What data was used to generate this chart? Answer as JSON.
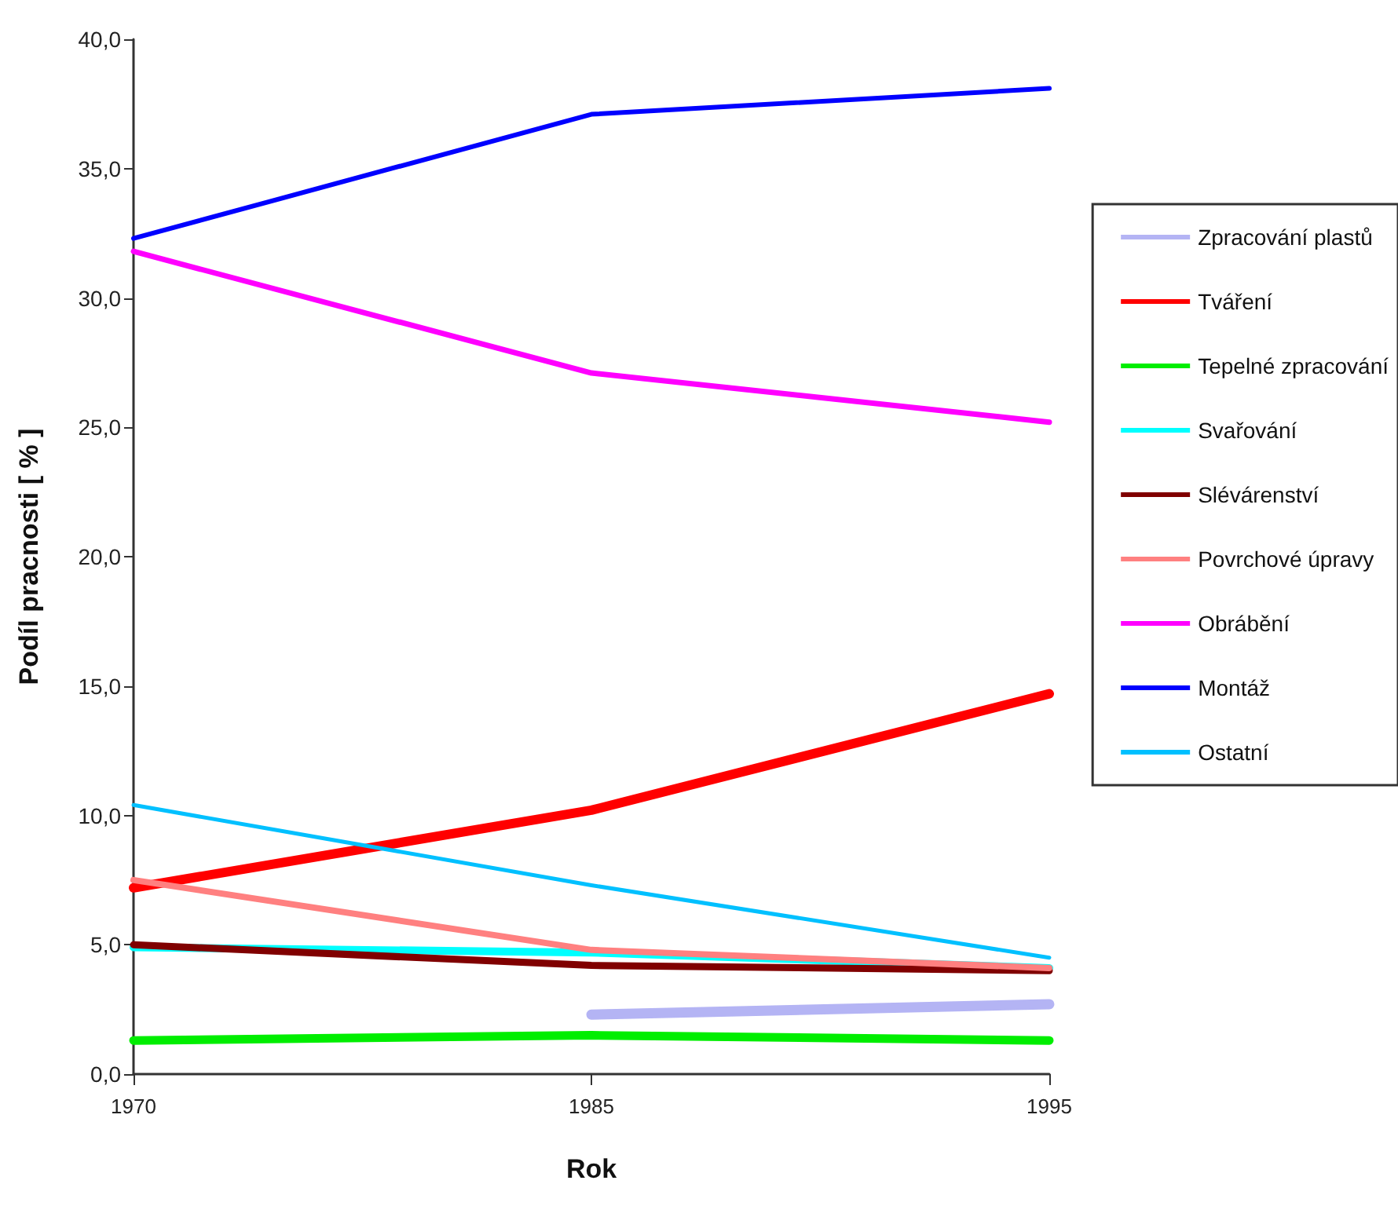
{
  "chart_data": {
    "type": "line",
    "xlabel": "Rok",
    "ylabel": "Podíl pracnosti [ % ]",
    "categories": [
      "1970",
      "1985",
      "1995"
    ],
    "series": [
      {
        "name": "Zpracování plastů",
        "color": "#b4b4f4",
        "values": [
          null,
          2.3,
          2.7
        ]
      },
      {
        "name": "Tváření",
        "color": "#ff0000",
        "values": [
          7.2,
          10.2,
          14.7
        ]
      },
      {
        "name": "Tepelné zpracování",
        "color": "#00ee00",
        "values": [
          1.3,
          1.5,
          1.3
        ]
      },
      {
        "name": "Svařování",
        "color": "#00ffff",
        "values": [
          4.9,
          4.7,
          4.1
        ]
      },
      {
        "name": "Slévárenství",
        "color": "#800000",
        "values": [
          5.0,
          4.2,
          4.0
        ]
      },
      {
        "name": "Povrchové úpravy",
        "color": "#ff8080",
        "values": [
          7.5,
          4.8,
          4.1
        ]
      },
      {
        "name": "Obrábění",
        "color": "#ff00ff",
        "values": [
          31.8,
          27.1,
          25.2
        ]
      },
      {
        "name": "Montáž",
        "color": "#0000ff",
        "values": [
          32.3,
          37.1,
          38.1
        ]
      },
      {
        "name": "Ostatní",
        "color": "#00c0ff",
        "values": [
          10.4,
          7.3,
          4.5
        ]
      }
    ],
    "ylim": [
      0,
      40
    ],
    "yticks": [
      {
        "value": 0,
        "label": "0,0"
      },
      {
        "value": 5,
        "label": "5,0"
      },
      {
        "value": 10,
        "label": "10,0"
      },
      {
        "value": 15,
        "label": "15,0"
      },
      {
        "value": 20,
        "label": "20,0"
      },
      {
        "value": 25,
        "label": "25,0"
      },
      {
        "value": 30,
        "label": "30,0"
      },
      {
        "value": 35,
        "label": "35,0"
      },
      {
        "value": 40,
        "label": "40,0"
      }
    ],
    "grid": false,
    "legend": "right",
    "marker": "none",
    "line_style": "solid"
  }
}
